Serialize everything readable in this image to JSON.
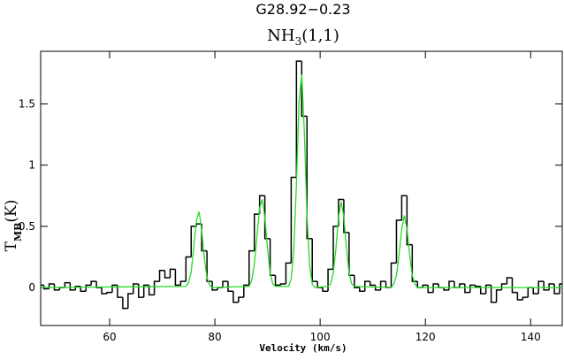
{
  "chart_data": {
    "type": "spectrum",
    "title": "G28.92−0.23",
    "subtitle": {
      "base": "NH",
      "sub": "3",
      "rest": "(1,1)"
    },
    "ylabel": {
      "base": "T",
      "sub": "MB",
      "rest": "(K)"
    },
    "xlabel": "Velocity (km/s)",
    "xlim": [
      46.9,
      146
    ],
    "ylim": [
      -0.31,
      1.93
    ],
    "xticks": [
      60,
      80,
      100,
      120,
      140
    ],
    "yticks": [
      0,
      0.5,
      1,
      1.5
    ],
    "series": [
      {
        "style": "step",
        "color": "#000000",
        "x": [
          47,
          48,
          49,
          50,
          51,
          52,
          53,
          54,
          55,
          56,
          57,
          58,
          59,
          60,
          61,
          62,
          63,
          64,
          65,
          66,
          67,
          68,
          69,
          70,
          71,
          72,
          73,
          74,
          75,
          76,
          77,
          78,
          79,
          80,
          81,
          82,
          83,
          84,
          85,
          86,
          87,
          88,
          89,
          90,
          91,
          92,
          93,
          94,
          95,
          96,
          97,
          98,
          99,
          100,
          101,
          102,
          103,
          104,
          105,
          106,
          107,
          108,
          109,
          110,
          111,
          112,
          113,
          114,
          115,
          116,
          117,
          118,
          119,
          120,
          121,
          122,
          123,
          124,
          125,
          126,
          127,
          128,
          129,
          130,
          131,
          132,
          133,
          134,
          135,
          136,
          137,
          138,
          139,
          140,
          141,
          142,
          143,
          144,
          145,
          146
        ],
        "values": [
          0.02,
          -0.01,
          0.03,
          -0.02,
          0,
          0.04,
          -0.02,
          0.01,
          -0.03,
          0.02,
          0.05,
          0,
          -0.05,
          -0.04,
          0.02,
          -0.08,
          -0.17,
          -0.05,
          0.03,
          -0.08,
          0.02,
          -0.06,
          0.05,
          0.14,
          0.08,
          0.15,
          0.02,
          0.05,
          0.25,
          0.5,
          0.52,
          0.3,
          0.05,
          -0.02,
          0,
          0.05,
          -0.03,
          -0.12,
          -0.08,
          0.02,
          0.3,
          0.6,
          0.75,
          0.4,
          0.1,
          0.02,
          0.03,
          0.2,
          0.9,
          1.85,
          1.4,
          0.4,
          0.05,
          0,
          -0.03,
          0.15,
          0.5,
          0.72,
          0.45,
          0.1,
          0,
          -0.03,
          0.05,
          0.02,
          -0.02,
          0.05,
          0,
          0.2,
          0.55,
          0.75,
          0.35,
          0.05,
          0,
          0.02,
          -0.04,
          0.03,
          0,
          -0.02,
          0.05,
          0,
          0.03,
          -0.04,
          0.02,
          0.01,
          -0.05,
          0.02,
          -0.12,
          -0.02,
          0.03,
          0.08,
          -0.04,
          -0.1,
          -0.08,
          0,
          -0.05,
          0.05,
          -0.02,
          0.03,
          -0.05,
          0.03
        ]
      },
      {
        "style": "line",
        "color": "#22dd22",
        "x": [
          47,
          74.5,
          75,
          75.5,
          76,
          76.5,
          77,
          77.5,
          78,
          78.5,
          79,
          79.5,
          86.5,
          87,
          87.5,
          88,
          88.5,
          89,
          89.5,
          90,
          90.5,
          91,
          91.5,
          94,
          94.5,
          95,
          95.5,
          96,
          96.5,
          97,
          97.5,
          98,
          98.5,
          99,
          101.5,
          102,
          102.5,
          103,
          103.5,
          104,
          104.5,
          105,
          105.5,
          106,
          106.5,
          113.5,
          114,
          114.5,
          115,
          115.5,
          116,
          116.5,
          117,
          117.5,
          118,
          118.5,
          146
        ],
        "values": [
          0,
          0.01,
          0.04,
          0.13,
          0.33,
          0.55,
          0.62,
          0.47,
          0.24,
          0.08,
          0.02,
          0,
          0.01,
          0.06,
          0.19,
          0.42,
          0.65,
          0.72,
          0.57,
          0.32,
          0.12,
          0.03,
          0.01,
          0.01,
          0.07,
          0.31,
          0.85,
          1.52,
          1.74,
          1.27,
          0.6,
          0.18,
          0.03,
          0,
          0.01,
          0.03,
          0.12,
          0.32,
          0.58,
          0.7,
          0.58,
          0.32,
          0.12,
          0.03,
          0.01,
          0,
          0.03,
          0.1,
          0.27,
          0.48,
          0.59,
          0.48,
          0.27,
          0.1,
          0.03,
          0,
          0
        ]
      }
    ]
  }
}
